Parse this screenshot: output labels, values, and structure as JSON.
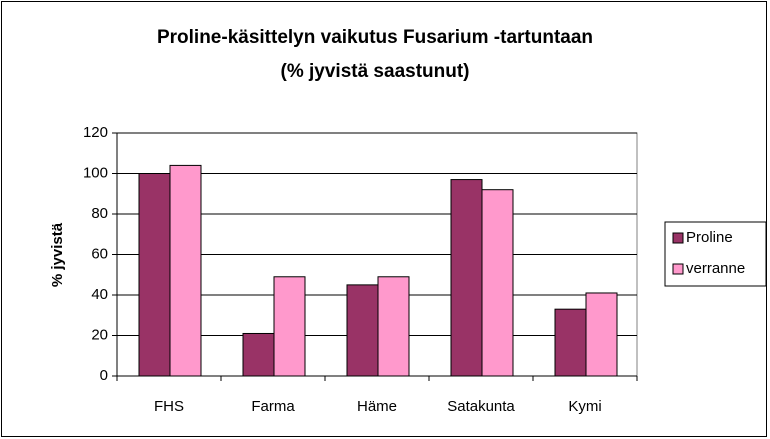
{
  "chart_data": {
    "type": "bar",
    "title": "Proline-käsittelyn vaikutus Fusarium -tartuntaan",
    "subtitle": "(% jyvistä saastunut)",
    "y_label": "% jyvistä",
    "categories": [
      "FHS",
      "Farma",
      "Häme",
      "Satakunta",
      "Kymi"
    ],
    "series": [
      {
        "name": "Proline",
        "color": "#993366",
        "values": [
          100,
          21,
          45,
          97,
          33
        ]
      },
      {
        "name": "verranne",
        "color": "#ff99cc",
        "values": [
          104,
          49,
          49,
          92,
          41
        ]
      }
    ],
    "ylim": [
      0,
      120
    ],
    "yticks": [
      0,
      20,
      40,
      60,
      80,
      100,
      120
    ],
    "grid": true,
    "legend": "right"
  }
}
